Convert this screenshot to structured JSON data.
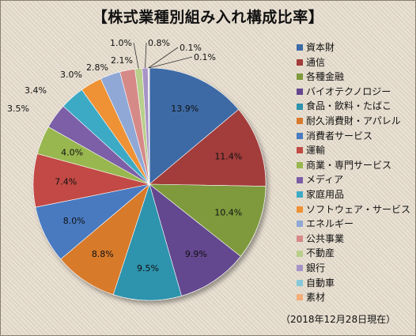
{
  "chart_data": {
    "type": "pie",
    "title": "【株式業種別組み入れ構成比率】",
    "note": "（2018年12月28日現在）",
    "legend_position": "right",
    "slices": [
      {
        "label": "資本財",
        "value": 13.9,
        "value_label": "13.9%",
        "color": "#3c6aa5"
      },
      {
        "label": "通信",
        "value": 11.4,
        "value_label": "11.4%",
        "color": "#a23d3a"
      },
      {
        "label": "各種金融",
        "value": 10.4,
        "value_label": "10.4%",
        "color": "#7e9a3d"
      },
      {
        "label": "バイオテクノロジー",
        "value": 9.9,
        "value_label": "9.9%",
        "color": "#64478f"
      },
      {
        "label": "食品・飲料・たばこ",
        "value": 9.5,
        "value_label": "9.5%",
        "color": "#2f93ad"
      },
      {
        "label": "耐久消費財・アパレル",
        "value": 8.8,
        "value_label": "8.8%",
        "color": "#d77a2c"
      },
      {
        "label": "消費者サービス",
        "value": 8.0,
        "value_label": "8.0%",
        "color": "#4a7ac0"
      },
      {
        "label": "運輸",
        "value": 7.4,
        "value_label": "7.4%",
        "color": "#c24a44"
      },
      {
        "label": "商業・専門サービス",
        "value": 4.0,
        "value_label": "4.0%",
        "color": "#98b74f"
      },
      {
        "label": "メディア",
        "value": 3.5,
        "value_label": "3.5%",
        "color": "#7b5ea6"
      },
      {
        "label": "家庭用品",
        "value": 3.4,
        "value_label": "3.4%",
        "color": "#3eaac5"
      },
      {
        "label": "ソフトウェア・サービス",
        "value": 3.0,
        "value_label": "3.0%",
        "color": "#ee9236"
      },
      {
        "label": "エネルギー",
        "value": 2.8,
        "value_label": "2.8%",
        "color": "#8fa8d6"
      },
      {
        "label": "公共事業",
        "value": 2.1,
        "value_label": "2.1%",
        "color": "#d68a88"
      },
      {
        "label": "不動産",
        "value": 1.0,
        "value_label": "1.0%",
        "color": "#b9cf8c"
      },
      {
        "label": "銀行",
        "value": 0.8,
        "value_label": "0.8%",
        "color": "#a794c6"
      },
      {
        "label": "自動車",
        "value": 0.1,
        "value_label": "0.1%",
        "color": "#87c9db"
      },
      {
        "label": "素材",
        "value": 0.1,
        "value_label": "0.1%",
        "color": "#f3ad78"
      }
    ]
  }
}
